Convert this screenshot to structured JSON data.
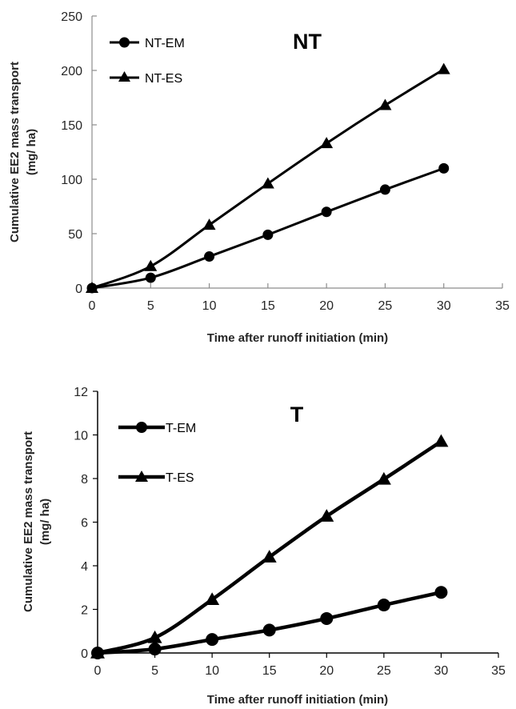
{
  "chart_data": [
    {
      "type": "line",
      "panel_label": "NT",
      "x": [
        0,
        5,
        10,
        15,
        20,
        25,
        30
      ],
      "xlim": [
        0,
        35
      ],
      "xticks": [
        0,
        5,
        10,
        15,
        20,
        25,
        30,
        35
      ],
      "ylim": [
        0,
        250
      ],
      "yticks": [
        0,
        50,
        100,
        150,
        200,
        250
      ],
      "xlabel": "Time after runoff initiation  (min)",
      "ylabel_lines": [
        "Cumulative EE2  mass transport",
        "(mg/ ha)"
      ],
      "grid": false,
      "legend_position": "top-left",
      "series": [
        {
          "name": "NT-EM",
          "marker": "circle",
          "values": [
            0,
            9.5,
            29,
            49,
            70,
            90.5,
            110
          ]
        },
        {
          "name": "NT-ES",
          "marker": "triangle",
          "values": [
            0,
            20,
            58,
            96,
            133,
            168,
            201
          ]
        }
      ]
    },
    {
      "type": "line",
      "panel_label": "T",
      "x": [
        0,
        5,
        10,
        15,
        20,
        25,
        30
      ],
      "xlim": [
        0,
        35
      ],
      "xticks": [
        0,
        5,
        10,
        15,
        20,
        25,
        30,
        35
      ],
      "ylim": [
        0,
        12
      ],
      "yticks": [
        0,
        2,
        4,
        6,
        8,
        10,
        12
      ],
      "xlabel": "Time after runoff initiation (min)",
      "ylabel_lines": [
        "Cumulative EE2 mass transport",
        "(mg/ ha)"
      ],
      "grid": false,
      "legend_position": "top-left",
      "series": [
        {
          "name": "T-EM",
          "marker": "circle",
          "values": [
            0,
            0.18,
            0.62,
            1.05,
            1.58,
            2.2,
            2.78
          ]
        },
        {
          "name": "T-ES",
          "marker": "triangle",
          "values": [
            0,
            0.7,
            2.45,
            4.4,
            6.27,
            7.97,
            9.7
          ]
        }
      ]
    }
  ]
}
